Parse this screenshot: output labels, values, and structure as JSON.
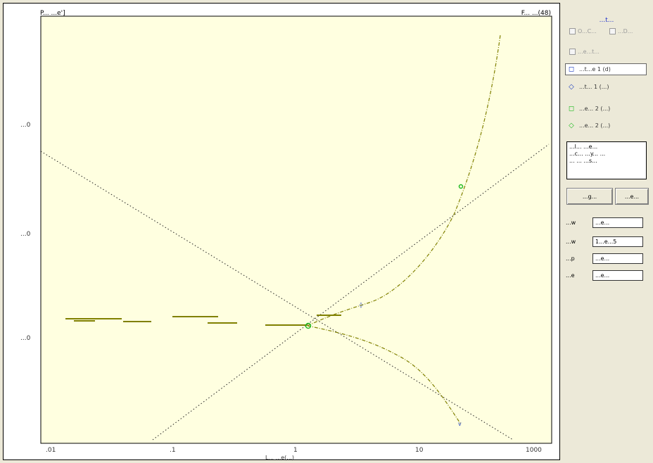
{
  "window": {
    "top_left_label": "P... ...e']",
    "top_right_label": "F... ...(48)"
  },
  "plot": {
    "bg_color": "#ffffe0",
    "curve_color": "#808000",
    "axes_color": "#000000",
    "x_ticks": [
      ".01",
      ".1",
      "1",
      "10",
      "1000"
    ],
    "y_ticks": [
      "...0",
      "...0",
      "...0"
    ],
    "x_label": "L... ...e(...)"
  },
  "panel": {
    "title": "...t...",
    "checkbox_1": "O...C...",
    "checkbox_2": "...D...",
    "checkbox_3": "...e...t...",
    "legend": [
      {
        "label": "...t...e 1 (d)",
        "symbol": "◻",
        "color": "#1f3fbf",
        "active": true
      },
      {
        "label": "...t... 1 (...)",
        "symbol": "◇",
        "color": "#1f3fbf",
        "active": false
      },
      {
        "label": "...e... 2 (...)",
        "symbol": "◻",
        "color": "#22bb22",
        "active": false
      },
      {
        "label": "...e... 2 (...)",
        "symbol": "◇",
        "color": "#22bb22",
        "active": false
      }
    ],
    "note_text": "...l... ...e...\n...c... ...y... ...\n... ... ...s...",
    "button_left": "...g...",
    "button_right": "...e...",
    "stats": [
      {
        "label": "...w",
        "value": "...e..."
      },
      {
        "label": "...w",
        "value": "1...e...5"
      },
      {
        "label": "...p",
        "value": "...e..."
      },
      {
        "label": "...e",
        "value": "...e..."
      }
    ]
  }
}
